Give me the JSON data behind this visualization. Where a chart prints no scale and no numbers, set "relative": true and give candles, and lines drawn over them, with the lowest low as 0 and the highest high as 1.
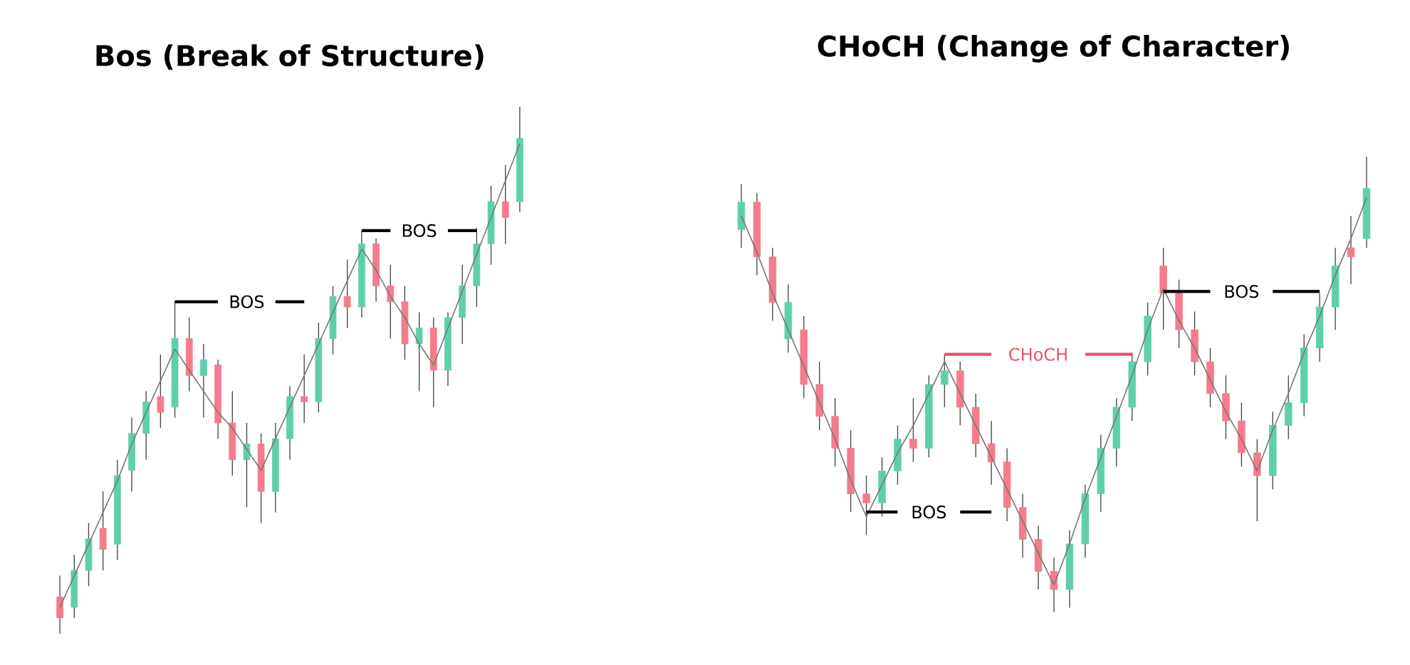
{
  "chart_data": [
    {
      "type": "candlestick",
      "title": "Bos (Break of Structure)",
      "relative": true,
      "categories": [
        null,
        null,
        null,
        null,
        null,
        null,
        null,
        null,
        null,
        null,
        null,
        null,
        null,
        null,
        null,
        null,
        null,
        null,
        null,
        null,
        null,
        null,
        null,
        null,
        null,
        null,
        null,
        null,
        null,
        null,
        null,
        null,
        null
      ],
      "ohlc": [
        [
          0.07,
          0.11,
          0.0,
          0.03
        ],
        [
          0.05,
          0.15,
          0.03,
          0.12
        ],
        [
          0.12,
          0.21,
          0.09,
          0.18
        ],
        [
          0.2,
          0.27,
          0.12,
          0.16
        ],
        [
          0.17,
          0.33,
          0.14,
          0.3
        ],
        [
          0.31,
          0.41,
          0.27,
          0.38
        ],
        [
          0.38,
          0.46,
          0.33,
          0.44
        ],
        [
          0.45,
          0.53,
          0.39,
          0.42
        ],
        [
          0.43,
          0.63,
          0.41,
          0.56
        ],
        [
          0.56,
          0.6,
          0.46,
          0.49
        ],
        [
          0.49,
          0.55,
          0.41,
          0.52
        ],
        [
          0.51,
          0.52,
          0.37,
          0.4
        ],
        [
          0.4,
          0.46,
          0.3,
          0.33
        ],
        [
          0.33,
          0.4,
          0.24,
          0.36
        ],
        [
          0.36,
          0.38,
          0.21,
          0.27
        ],
        [
          0.27,
          0.4,
          0.23,
          0.37
        ],
        [
          0.37,
          0.47,
          0.33,
          0.45
        ],
        [
          0.45,
          0.53,
          0.4,
          0.44
        ],
        [
          0.44,
          0.59,
          0.42,
          0.56
        ],
        [
          0.56,
          0.66,
          0.53,
          0.64
        ],
        [
          0.64,
          0.71,
          0.58,
          0.62
        ],
        [
          0.62,
          0.765,
          0.6,
          0.74
        ],
        [
          0.74,
          0.75,
          0.63,
          0.66
        ],
        [
          0.66,
          0.7,
          0.56,
          0.63
        ],
        [
          0.63,
          0.66,
          0.52,
          0.55
        ],
        [
          0.55,
          0.61,
          0.46,
          0.58
        ],
        [
          0.58,
          0.6,
          0.43,
          0.5
        ],
        [
          0.5,
          0.61,
          0.47,
          0.6
        ],
        [
          0.6,
          0.7,
          0.55,
          0.66
        ],
        [
          0.66,
          0.77,
          0.62,
          0.74
        ],
        [
          0.74,
          0.85,
          0.7,
          0.82
        ],
        [
          0.82,
          0.89,
          0.74,
          0.79
        ],
        [
          0.82,
          1.0,
          0.8,
          0.94
        ]
      ],
      "colors": [
        "#f47c8c",
        "#5fcfab",
        "#5fcfab",
        "#f47c8c",
        "#5fcfab",
        "#5fcfab",
        "#5fcfab",
        "#f47c8c",
        "#5fcfab",
        "#f47c8c",
        "#5fcfab",
        "#f47c8c",
        "#f47c8c",
        "#5fcfab",
        "#f47c8c",
        "#5fcfab",
        "#5fcfab",
        "#f47c8c",
        "#5fcfab",
        "#5fcfab",
        "#f47c8c",
        "#5fcfab",
        "#f47c8c",
        "#f47c8c",
        "#f47c8c",
        "#5fcfab",
        "#f47c8c",
        "#5fcfab",
        "#5fcfab",
        "#5fcfab",
        "#5fcfab",
        "#f47c8c",
        "#5fcfab"
      ],
      "series": [
        {
          "type": "line",
          "color": "#777777",
          "values": [
            0.05,
            0.11,
            0.17,
            0.23,
            0.29,
            0.36,
            0.42,
            0.48,
            0.54,
            0.5,
            0.46,
            0.42,
            0.39,
            0.35,
            0.31,
            0.37,
            0.43,
            0.49,
            0.55,
            0.61,
            0.67,
            0.73,
            0.69,
            0.64,
            0.6,
            0.55,
            0.51,
            0.58,
            0.65,
            0.72,
            0.79,
            0.86,
            0.93
          ]
        },
        {
          "type": "line",
          "name": "BOS",
          "color": "#000000",
          "values": [
            null,
            null,
            null,
            null,
            null,
            null,
            null,
            null,
            0.63,
            0.63,
            0.63,
            0.63,
            null,
            null,
            null,
            0.63,
            0.63,
            0.63,
            null,
            null,
            null,
            null,
            null,
            null,
            null,
            null,
            null,
            null,
            null,
            null,
            null,
            null,
            null
          ]
        },
        {
          "type": "line",
          "name": "BOS",
          "color": "#000000",
          "values": [
            null,
            null,
            null,
            null,
            null,
            null,
            null,
            null,
            null,
            null,
            null,
            null,
            null,
            null,
            null,
            null,
            null,
            null,
            null,
            null,
            null,
            0.765,
            0.765,
            0.765,
            null,
            null,
            null,
            0.765,
            0.765,
            0.765,
            null,
            null,
            null
          ]
        }
      ]
    },
    {
      "type": "candlestick",
      "title": "CHoCH (Change of Character)",
      "relative": true,
      "categories": [
        null,
        null,
        null,
        null,
        null,
        null,
        null,
        null,
        null,
        null,
        null,
        null,
        null,
        null,
        null,
        null,
        null,
        null,
        null,
        null,
        null,
        null,
        null,
        null,
        null,
        null,
        null,
        null,
        null,
        null,
        null,
        null,
        null,
        null,
        null,
        null,
        null,
        null,
        null,
        null,
        null
      ],
      "ohlc": [
        [
          0.84,
          0.94,
          0.8,
          0.9
        ],
        [
          0.9,
          0.92,
          0.74,
          0.78
        ],
        [
          0.78,
          0.8,
          0.64,
          0.68
        ],
        [
          0.6,
          0.72,
          0.57,
          0.68
        ],
        [
          0.62,
          0.65,
          0.47,
          0.5
        ],
        [
          0.5,
          0.55,
          0.4,
          0.43
        ],
        [
          0.43,
          0.47,
          0.32,
          0.36
        ],
        [
          0.36,
          0.4,
          0.22,
          0.26
        ],
        [
          0.26,
          0.3,
          0.17,
          0.24
        ],
        [
          0.24,
          0.34,
          0.21,
          0.31
        ],
        [
          0.31,
          0.41,
          0.28,
          0.38
        ],
        [
          0.38,
          0.47,
          0.33,
          0.36
        ],
        [
          0.36,
          0.52,
          0.34,
          0.5
        ],
        [
          0.5,
          0.566,
          0.45,
          0.53
        ],
        [
          0.53,
          0.55,
          0.41,
          0.45
        ],
        [
          0.45,
          0.48,
          0.34,
          0.37
        ],
        [
          0.37,
          0.42,
          0.28,
          0.33
        ],
        [
          0.33,
          0.36,
          0.2,
          0.23
        ],
        [
          0.23,
          0.26,
          0.12,
          0.16
        ],
        [
          0.16,
          0.19,
          0.05,
          0.09
        ],
        [
          0.09,
          0.12,
          0.0,
          0.05
        ],
        [
          0.05,
          0.18,
          0.01,
          0.15
        ],
        [
          0.15,
          0.28,
          0.12,
          0.26
        ],
        [
          0.26,
          0.39,
          0.22,
          0.36
        ],
        [
          0.36,
          0.47,
          0.32,
          0.45
        ],
        [
          0.45,
          0.57,
          0.42,
          0.55
        ],
        [
          0.55,
          0.68,
          0.52,
          0.65
        ],
        [
          0.76,
          0.8,
          0.62,
          0.7
        ],
        [
          0.7,
          0.73,
          0.58,
          0.62
        ],
        [
          0.62,
          0.66,
          0.52,
          0.55
        ],
        [
          0.55,
          0.58,
          0.45,
          0.48
        ],
        [
          0.48,
          0.52,
          0.38,
          0.42
        ],
        [
          0.42,
          0.46,
          0.32,
          0.35
        ],
        [
          0.35,
          0.38,
          0.2,
          0.3
        ],
        [
          0.3,
          0.44,
          0.27,
          0.41
        ],
        [
          0.41,
          0.52,
          0.38,
          0.46
        ],
        [
          0.46,
          0.61,
          0.43,
          0.58
        ],
        [
          0.58,
          0.7,
          0.55,
          0.67
        ],
        [
          0.67,
          0.8,
          0.62,
          0.76
        ],
        [
          0.8,
          0.87,
          0.72,
          0.78
        ],
        [
          0.82,
          1.0,
          0.8,
          0.93
        ]
      ],
      "colors": [
        "#5fcfab",
        "#f47c8c",
        "#f47c8c",
        "#5fcfab",
        "#f47c8c",
        "#f47c8c",
        "#f47c8c",
        "#f47c8c",
        "#f47c8c",
        "#5fcfab",
        "#5fcfab",
        "#f47c8c",
        "#5fcfab",
        "#5fcfab",
        "#f47c8c",
        "#f47c8c",
        "#f47c8c",
        "#f47c8c",
        "#f47c8c",
        "#f47c8c",
        "#f47c8c",
        "#5fcfab",
        "#5fcfab",
        "#5fcfab",
        "#5fcfab",
        "#5fcfab",
        "#5fcfab",
        "#f47c8c",
        "#f47c8c",
        "#f47c8c",
        "#f47c8c",
        "#f47c8c",
        "#f47c8c",
        "#f47c8c",
        "#5fcfab",
        "#5fcfab",
        "#5fcfab",
        "#5fcfab",
        "#5fcfab",
        "#f47c8c",
        "#5fcfab"
      ],
      "series": [
        {
          "type": "line",
          "color": "#777777",
          "values": [
            0.87,
            0.79,
            0.7,
            0.62,
            0.54,
            0.46,
            0.38,
            0.29,
            0.21,
            0.28,
            0.35,
            0.41,
            0.48,
            0.55,
            0.48,
            0.41,
            0.34,
            0.27,
            0.2,
            0.13,
            0.06,
            0.15,
            0.25,
            0.34,
            0.43,
            0.52,
            0.62,
            0.71,
            0.64,
            0.58,
            0.51,
            0.44,
            0.38,
            0.31,
            0.4,
            0.48,
            0.57,
            0.65,
            0.74,
            0.82,
            0.91
          ]
        },
        {
          "type": "line",
          "name": "BOS",
          "color": "#000000",
          "values": [
            null,
            null,
            null,
            null,
            null,
            null,
            null,
            null,
            0.22,
            0.22,
            0.22,
            null,
            null,
            null,
            0.22,
            0.22,
            0.22,
            null,
            null,
            null,
            null,
            null,
            null,
            null,
            null,
            null,
            null,
            null,
            null,
            null,
            null,
            null,
            null,
            null,
            null,
            null,
            null,
            null,
            null,
            null,
            null
          ]
        },
        {
          "type": "line",
          "name": "CHoCH",
          "color": "#e8546a",
          "values": [
            null,
            null,
            null,
            null,
            null,
            null,
            null,
            null,
            null,
            null,
            null,
            null,
            null,
            0.566,
            0.566,
            0.566,
            0.566,
            null,
            null,
            null,
            null,
            null,
            0.566,
            0.566,
            0.566,
            0.566,
            null,
            null,
            null,
            null,
            null,
            null,
            null,
            null,
            null,
            null,
            null,
            null,
            null,
            null,
            null
          ]
        },
        {
          "type": "line",
          "name": "BOS",
          "color": "#000000",
          "values": [
            null,
            null,
            null,
            null,
            null,
            null,
            null,
            null,
            null,
            null,
            null,
            null,
            null,
            null,
            null,
            null,
            null,
            null,
            null,
            null,
            null,
            null,
            null,
            null,
            null,
            null,
            null,
            0.704,
            0.704,
            0.704,
            0.704,
            null,
            null,
            null,
            0.704,
            0.704,
            0.704,
            0.704,
            null,
            null,
            null
          ]
        }
      ]
    }
  ]
}
